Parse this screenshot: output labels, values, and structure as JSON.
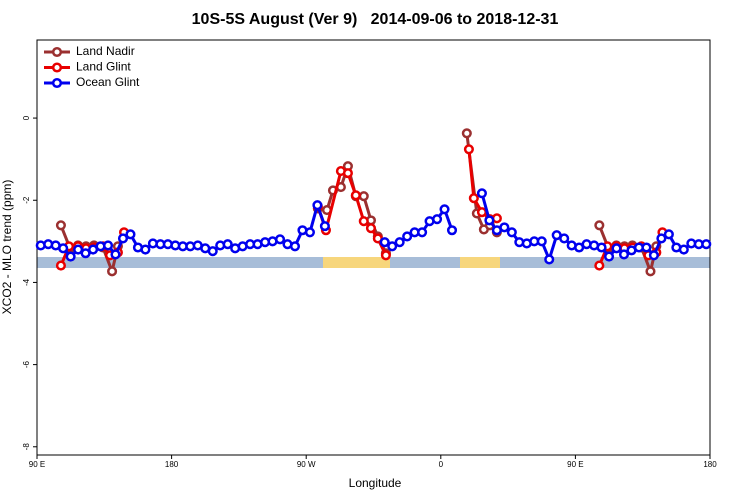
{
  "chart_data": {
    "type": "line",
    "title": "10S-5S August (Ver 9)   2014-09-06 to 2018-12-31",
    "x_label": "Longitude",
    "y_label": "XCO2 - MLO trend (ppm)",
    "xlim": [
      90,
      540
    ],
    "xticks": [
      {
        "value": 90,
        "label": "90 E"
      },
      180,
      {
        "value": 270,
        "label": "90 W"
      },
      {
        "value": 360,
        "label": "0"
      },
      {
        "value": 450,
        "label": "90 E"
      },
      {
        "value": 540,
        "label": "180"
      }
    ],
    "ylim": [
      -8.2,
      1.9
    ],
    "yticks": [
      0,
      -2,
      -4,
      -6,
      -8
    ],
    "legend": "top-left",
    "series": [
      {
        "name": "Land Nadir",
        "color": "#9b3030",
        "x": [
          106,
          112.1,
          117.4,
          122.8,
          128.1,
          134.1,
          140.2,
          144.1,
          null,
          277.8,
          283.9,
          287.9,
          293.2,
          297.9,
          303.2,
          308.5,
          313.3,
          317.9,
          323.3,
          null,
          377.4,
          384.1,
          388.8,
          392.8,
          397.5,
          null,
          466,
          472.1,
          477.4,
          482.8,
          488.1,
          494.1,
          500.2,
          504.1
        ],
        "values": [
          -2.61,
          -3.17,
          -3.1,
          -3.12,
          -3.1,
          -3.15,
          -3.73,
          -3.12,
          null,
          -2.2,
          -2.24,
          -1.76,
          -1.68,
          -1.17,
          -1.9,
          -1.9,
          -2.49,
          -2.88,
          -3.29,
          null,
          -0.37,
          -2.32,
          -2.71,
          -2.61,
          -2.78,
          null,
          -2.61,
          -3.17,
          -3.1,
          -3.12,
          -3.1,
          -3.15,
          -3.73,
          -3.12
        ]
      },
      {
        "name": "Land Glint",
        "color": "#e80000",
        "x": [
          106,
          111.4,
          117.4,
          122.8,
          128.1,
          134.1,
          138.8,
          144.1,
          148.2,
          null,
          277.8,
          283.2,
          293.2,
          297.9,
          303.2,
          308.5,
          313.3,
          317.9,
          323.3,
          null,
          378.8,
          382.1,
          387.5,
          392.8,
          397.5,
          null,
          466,
          471.4,
          477.4,
          482.8,
          488.1,
          494.1,
          498.8,
          504.1,
          508.2
        ],
        "values": [
          -3.59,
          -3.12,
          -3.12,
          -3.17,
          -3.15,
          -3.12,
          -3.34,
          -3.27,
          -2.78,
          null,
          -2.15,
          -2.73,
          -1.29,
          -1.34,
          -1.88,
          -2.51,
          -2.68,
          -2.93,
          -3.34,
          null,
          -0.76,
          -1.95,
          -2.29,
          -2.46,
          -2.44,
          null,
          -3.59,
          -3.12,
          -3.12,
          -3.17,
          -3.15,
          -3.12,
          -3.34,
          -3.27,
          -2.78
        ]
      },
      {
        "name": "Ocean Glint",
        "color": "#0000ee",
        "x": [
          92.5,
          97.5,
          102.5,
          107.5,
          112.5,
          117.5,
          122.5,
          127.5,
          132.5,
          137.5,
          142.5,
          147.5,
          152.5,
          157.5,
          162.5,
          167.5,
          172.5,
          177.5,
          182.5,
          187.5,
          192.5,
          197.5,
          202.5,
          207.5,
          212.5,
          217.5,
          222.5,
          227.5,
          232.5,
          237.5,
          242.5,
          247.5,
          252.5,
          257.5,
          262.5,
          267.5,
          272.5,
          277.5,
          282.5,
          287.5,
          292.5,
          297.5,
          302.5,
          307.5,
          312.5,
          317.5,
          322.5,
          327.5,
          332.5,
          337.5,
          342.5,
          347.5,
          352.5,
          357.5,
          362.5,
          367.5,
          372.5,
          377.5,
          382.5,
          387.5,
          392.5,
          397.5,
          402.5,
          407.5,
          412.5,
          417.5,
          422.5,
          427.5,
          432.5,
          437.5,
          442.5,
          447.5,
          452.5,
          457.5,
          462.5,
          467.5,
          472.5,
          477.5,
          482.5,
          487.5,
          492.5,
          497.5,
          502.5,
          507.5,
          512.5,
          517.5,
          522.5,
          527.5,
          532.5,
          537.5
        ],
        "values": [
          -3.1,
          -3.07,
          -3.1,
          -3.17,
          -3.37,
          -3.2,
          -3.29,
          -3.2,
          -3.12,
          -3.1,
          -3.32,
          -2.93,
          -2.83,
          -3.15,
          -3.2,
          -3.05,
          -3.07,
          -3.07,
          -3.1,
          -3.12,
          -3.12,
          -3.1,
          -3.17,
          -3.24,
          -3.1,
          -3.07,
          -3.17,
          -3.12,
          -3.07,
          -3.07,
          -3.02,
          -3.0,
          -2.95,
          -3.07,
          -3.12,
          -2.73,
          -2.78,
          -2.12,
          -2.63,
          null,
          null,
          null,
          null,
          null,
          null,
          null,
          -3.02,
          -3.12,
          -3.02,
          -2.88,
          -2.78,
          -2.78,
          -2.51,
          -2.46,
          -2.22,
          -2.73,
          null,
          null,
          null,
          -1.83,
          -2.49,
          -2.73,
          -2.66,
          -2.78,
          -3.02,
          -3.05,
          -3.0,
          -3.0,
          -3.44,
          -2.85,
          -2.93,
          -3.1,
          -3.15,
          -3.07,
          -3.1,
          -3.15,
          -3.37,
          -3.17,
          -3.32,
          -3.22,
          -3.15,
          -3.15,
          -3.34,
          -2.93,
          -2.83,
          -3.15,
          -3.2,
          -3.05,
          -3.07,
          -3.07
        ]
      }
    ]
  }
}
